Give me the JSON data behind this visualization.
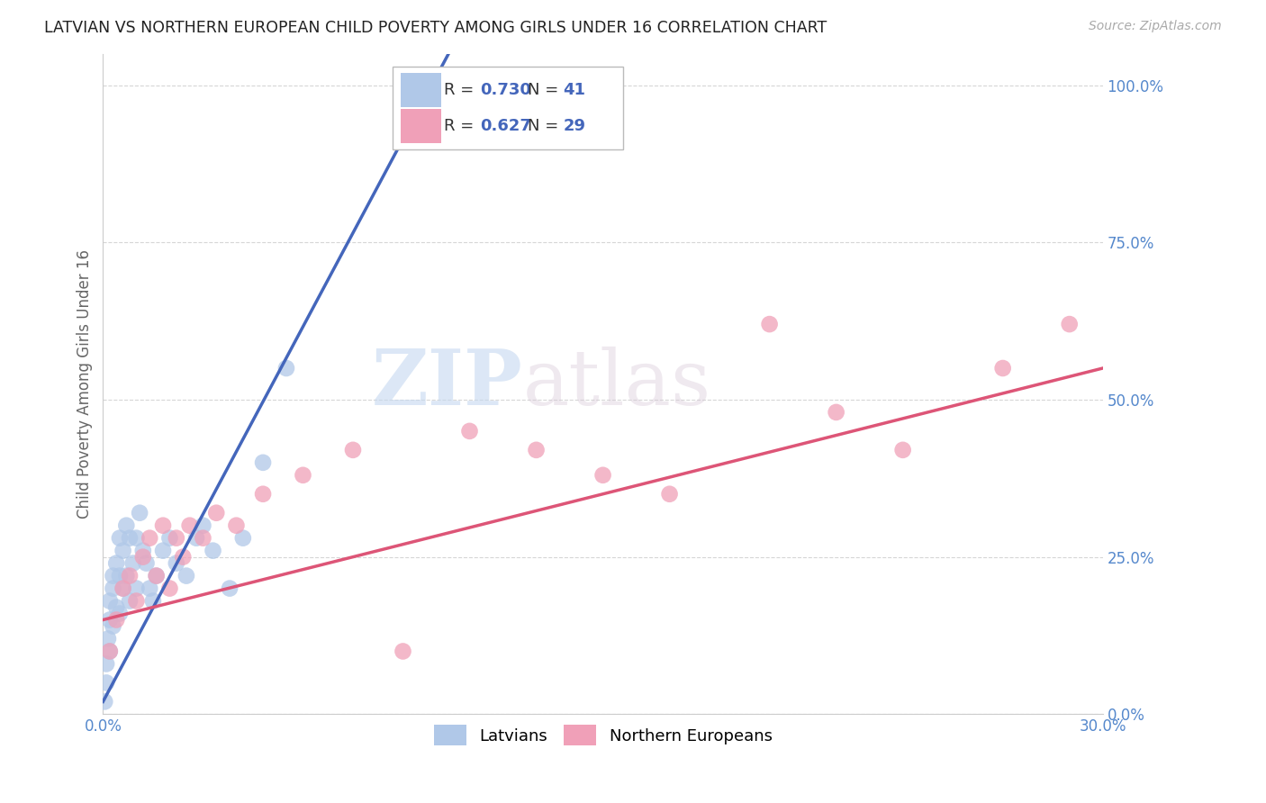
{
  "title": "LATVIAN VS NORTHERN EUROPEAN CHILD POVERTY AMONG GIRLS UNDER 16 CORRELATION CHART",
  "source": "Source: ZipAtlas.com",
  "ylabel": "Child Poverty Among Girls Under 16",
  "xlim": [
    0.0,
    0.3
  ],
  "ylim": [
    0.0,
    1.05
  ],
  "yticks": [
    0.0,
    0.25,
    0.5,
    0.75,
    1.0
  ],
  "ytick_labels": [
    "0.0%",
    "25.0%",
    "50.0%",
    "75.0%",
    "100.0%"
  ],
  "xticks": [
    0.0,
    0.05,
    0.1,
    0.15,
    0.2,
    0.25,
    0.3
  ],
  "xtick_labels": [
    "0.0%",
    "",
    "",
    "",
    "",
    "",
    "30.0%"
  ],
  "blue_R": 0.73,
  "blue_N": 41,
  "pink_R": 0.627,
  "pink_N": 29,
  "blue_color": "#b0c8e8",
  "pink_color": "#f0a0b8",
  "line_blue": "#4466bb",
  "line_pink": "#dd5577",
  "tick_color": "#5588cc",
  "background": "#ffffff",
  "grid_color": "#cccccc",
  "latvian_x": [
    0.0005,
    0.001,
    0.001,
    0.0015,
    0.002,
    0.002,
    0.002,
    0.003,
    0.003,
    0.003,
    0.004,
    0.004,
    0.005,
    0.005,
    0.005,
    0.006,
    0.006,
    0.007,
    0.007,
    0.008,
    0.008,
    0.009,
    0.01,
    0.01,
    0.011,
    0.012,
    0.013,
    0.014,
    0.015,
    0.016,
    0.018,
    0.02,
    0.022,
    0.025,
    0.028,
    0.03,
    0.033,
    0.038,
    0.042,
    0.048,
    0.055
  ],
  "latvian_y": [
    0.02,
    0.05,
    0.08,
    0.12,
    0.1,
    0.15,
    0.18,
    0.14,
    0.2,
    0.22,
    0.17,
    0.24,
    0.16,
    0.22,
    0.28,
    0.2,
    0.26,
    0.22,
    0.3,
    0.18,
    0.28,
    0.24,
    0.2,
    0.28,
    0.32,
    0.26,
    0.24,
    0.2,
    0.18,
    0.22,
    0.26,
    0.28,
    0.24,
    0.22,
    0.28,
    0.3,
    0.26,
    0.2,
    0.28,
    0.4,
    0.55
  ],
  "northern_x": [
    0.002,
    0.004,
    0.006,
    0.008,
    0.01,
    0.012,
    0.014,
    0.016,
    0.018,
    0.02,
    0.022,
    0.024,
    0.026,
    0.03,
    0.034,
    0.04,
    0.048,
    0.06,
    0.075,
    0.09,
    0.11,
    0.13,
    0.15,
    0.17,
    0.2,
    0.22,
    0.24,
    0.27,
    0.29
  ],
  "northern_y": [
    0.1,
    0.15,
    0.2,
    0.22,
    0.18,
    0.25,
    0.28,
    0.22,
    0.3,
    0.2,
    0.28,
    0.25,
    0.3,
    0.28,
    0.32,
    0.3,
    0.35,
    0.38,
    0.42,
    0.1,
    0.45,
    0.42,
    0.38,
    0.35,
    0.62,
    0.48,
    0.42,
    0.55,
    0.62
  ],
  "watermark_zip": "ZIP",
  "watermark_atlas": "atlas",
  "legend_R_color": "#4466bb",
  "legend_N_color": "#4466bb"
}
